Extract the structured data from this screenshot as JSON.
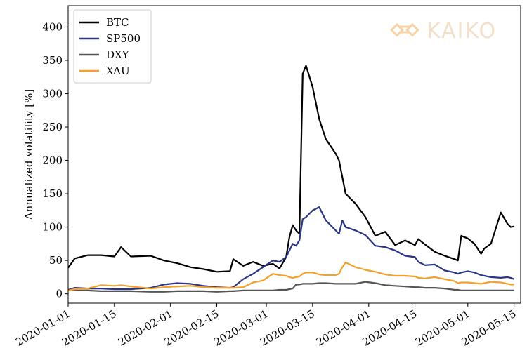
{
  "chart_data": {
    "type": "line",
    "y_label": "Annualized volatility [%]",
    "watermark": "KAIKO",
    "x": [
      "2020-01-01",
      "2020-01-03",
      "2020-01-07",
      "2020-01-11",
      "2020-01-15",
      "2020-01-17",
      "2020-01-20",
      "2020-01-26",
      "2020-01-30",
      "2020-02-03",
      "2020-02-07",
      "2020-02-11",
      "2020-02-15",
      "2020-02-19",
      "2020-02-20",
      "2020-02-23",
      "2020-02-26",
      "2020-02-29",
      "2020-03-03",
      "2020-03-05",
      "2020-03-07",
      "2020-03-08",
      "2020-03-09",
      "2020-03-10",
      "2020-03-11",
      "2020-03-12",
      "2020-03-13",
      "2020-03-15",
      "2020-03-17",
      "2020-03-19",
      "2020-03-22",
      "2020-03-23",
      "2020-03-24",
      "2020-03-25",
      "2020-03-28",
      "2020-03-31",
      "2020-04-03",
      "2020-04-06",
      "2020-04-09",
      "2020-04-12",
      "2020-04-15",
      "2020-04-16",
      "2020-04-18",
      "2020-04-21",
      "2020-04-24",
      "2020-04-27",
      "2020-04-28",
      "2020-04-29",
      "2020-05-01",
      "2020-05-03",
      "2020-05-05",
      "2020-05-06",
      "2020-05-08",
      "2020-05-11",
      "2020-05-13",
      "2020-05-14",
      "2020-05-15"
    ],
    "series": [
      {
        "name": "BTC",
        "color": "#000000",
        "values": [
          39,
          53,
          58,
          58,
          56,
          70,
          56,
          57,
          50,
          46,
          40,
          37,
          33,
          34,
          52,
          42,
          48,
          42,
          45,
          38,
          55,
          85,
          103,
          95,
          90,
          330,
          342,
          310,
          262,
          232,
          210,
          200,
          175,
          150,
          135,
          115,
          87,
          93,
          73,
          80,
          73,
          82,
          74,
          63,
          57,
          52,
          50,
          87,
          83,
          75,
          60,
          68,
          75,
          122,
          105,
          100,
          101
        ]
      },
      {
        "name": "SP500",
        "color": "#2b3585",
        "values": [
          6,
          9,
          8,
          8,
          7,
          7,
          7,
          9,
          14,
          16,
          15,
          12,
          10,
          9,
          10,
          22,
          30,
          40,
          50,
          48,
          55,
          65,
          75,
          72,
          80,
          112,
          115,
          125,
          130,
          110,
          95,
          90,
          110,
          100,
          95,
          88,
          72,
          70,
          65,
          57,
          55,
          48,
          43,
          44,
          35,
          32,
          30,
          32,
          34,
          32,
          28,
          27,
          25,
          24,
          25,
          24,
          22
        ]
      },
      {
        "name": "DXY",
        "color": "#555555",
        "values": [
          5,
          5,
          5,
          4,
          4,
          4,
          4,
          3,
          3,
          4,
          4,
          4,
          3,
          4,
          4,
          5,
          5,
          5,
          5,
          6,
          6,
          7,
          8,
          14,
          14,
          15,
          15,
          15,
          16,
          16,
          15,
          15,
          15,
          15,
          15,
          18,
          16,
          13,
          12,
          11,
          10,
          10,
          9,
          9,
          8,
          6,
          6,
          5,
          5,
          5,
          5,
          5,
          5,
          5,
          5,
          5,
          5
        ]
      },
      {
        "name": "XAU",
        "color": "#f5a02a",
        "values": [
          5,
          7,
          8,
          13,
          12,
          13,
          11,
          8,
          10,
          11,
          12,
          10,
          9,
          9,
          9,
          10,
          17,
          20,
          30,
          28,
          27,
          25,
          24,
          25,
          26,
          30,
          32,
          32,
          29,
          28,
          28,
          30,
          40,
          47,
          40,
          36,
          33,
          29,
          27,
          27,
          26,
          24,
          23,
          25,
          22,
          19,
          16,
          17,
          17,
          16,
          15,
          16,
          18,
          17,
          15,
          14,
          14
        ]
      }
    ],
    "xlim": [
      "2020-01-01",
      "2020-05-17"
    ],
    "xticks": [
      "2020-01-01",
      "2020-01-15",
      "2020-02-01",
      "2020-02-15",
      "2020-03-01",
      "2020-03-15",
      "2020-04-01",
      "2020-04-15",
      "2020-05-01",
      "2020-05-15"
    ],
    "ylim": [
      -14,
      432
    ],
    "yticks": [
      0,
      50,
      100,
      150,
      200,
      250,
      300,
      350,
      400
    ],
    "grid": false,
    "legend": "upper-left"
  }
}
